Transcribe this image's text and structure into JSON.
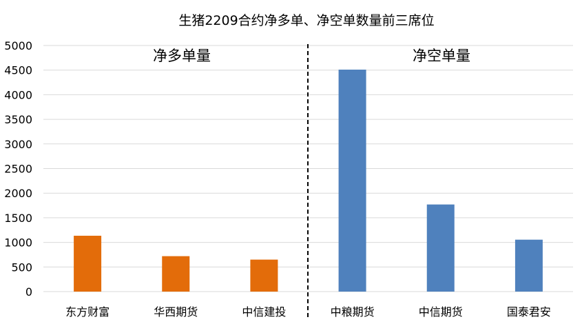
{
  "chart_data": {
    "type": "bar",
    "title": "生猪2209合约净多单、净空单数量前三席位",
    "xlabel": "",
    "ylabel": "",
    "ylim": [
      0,
      5000
    ],
    "yticks": [
      0,
      500,
      1000,
      1500,
      2000,
      2500,
      3000,
      3500,
      4000,
      4500,
      5000
    ],
    "grid": true,
    "legend": "none",
    "categories": [
      "东方财富",
      "华西期货",
      "中信建投",
      "中粮期货",
      "中信期货",
      "国泰君安"
    ],
    "values": [
      1135,
      720,
      650,
      4510,
      1770,
      1055
    ],
    "bar_colors": [
      "#e36c0a",
      "#e36c0a",
      "#e36c0a",
      "#4f81bd",
      "#4f81bd",
      "#4f81bd"
    ],
    "groups": [
      {
        "label": "净多单量",
        "categories": [
          "东方财富",
          "华西期货",
          "中信建投"
        ],
        "color": "#e36c0a"
      },
      {
        "label": "净空单量",
        "categories": [
          "中粮期货",
          "中信期货",
          "国泰君安"
        ],
        "color": "#4f81bd"
      }
    ]
  }
}
